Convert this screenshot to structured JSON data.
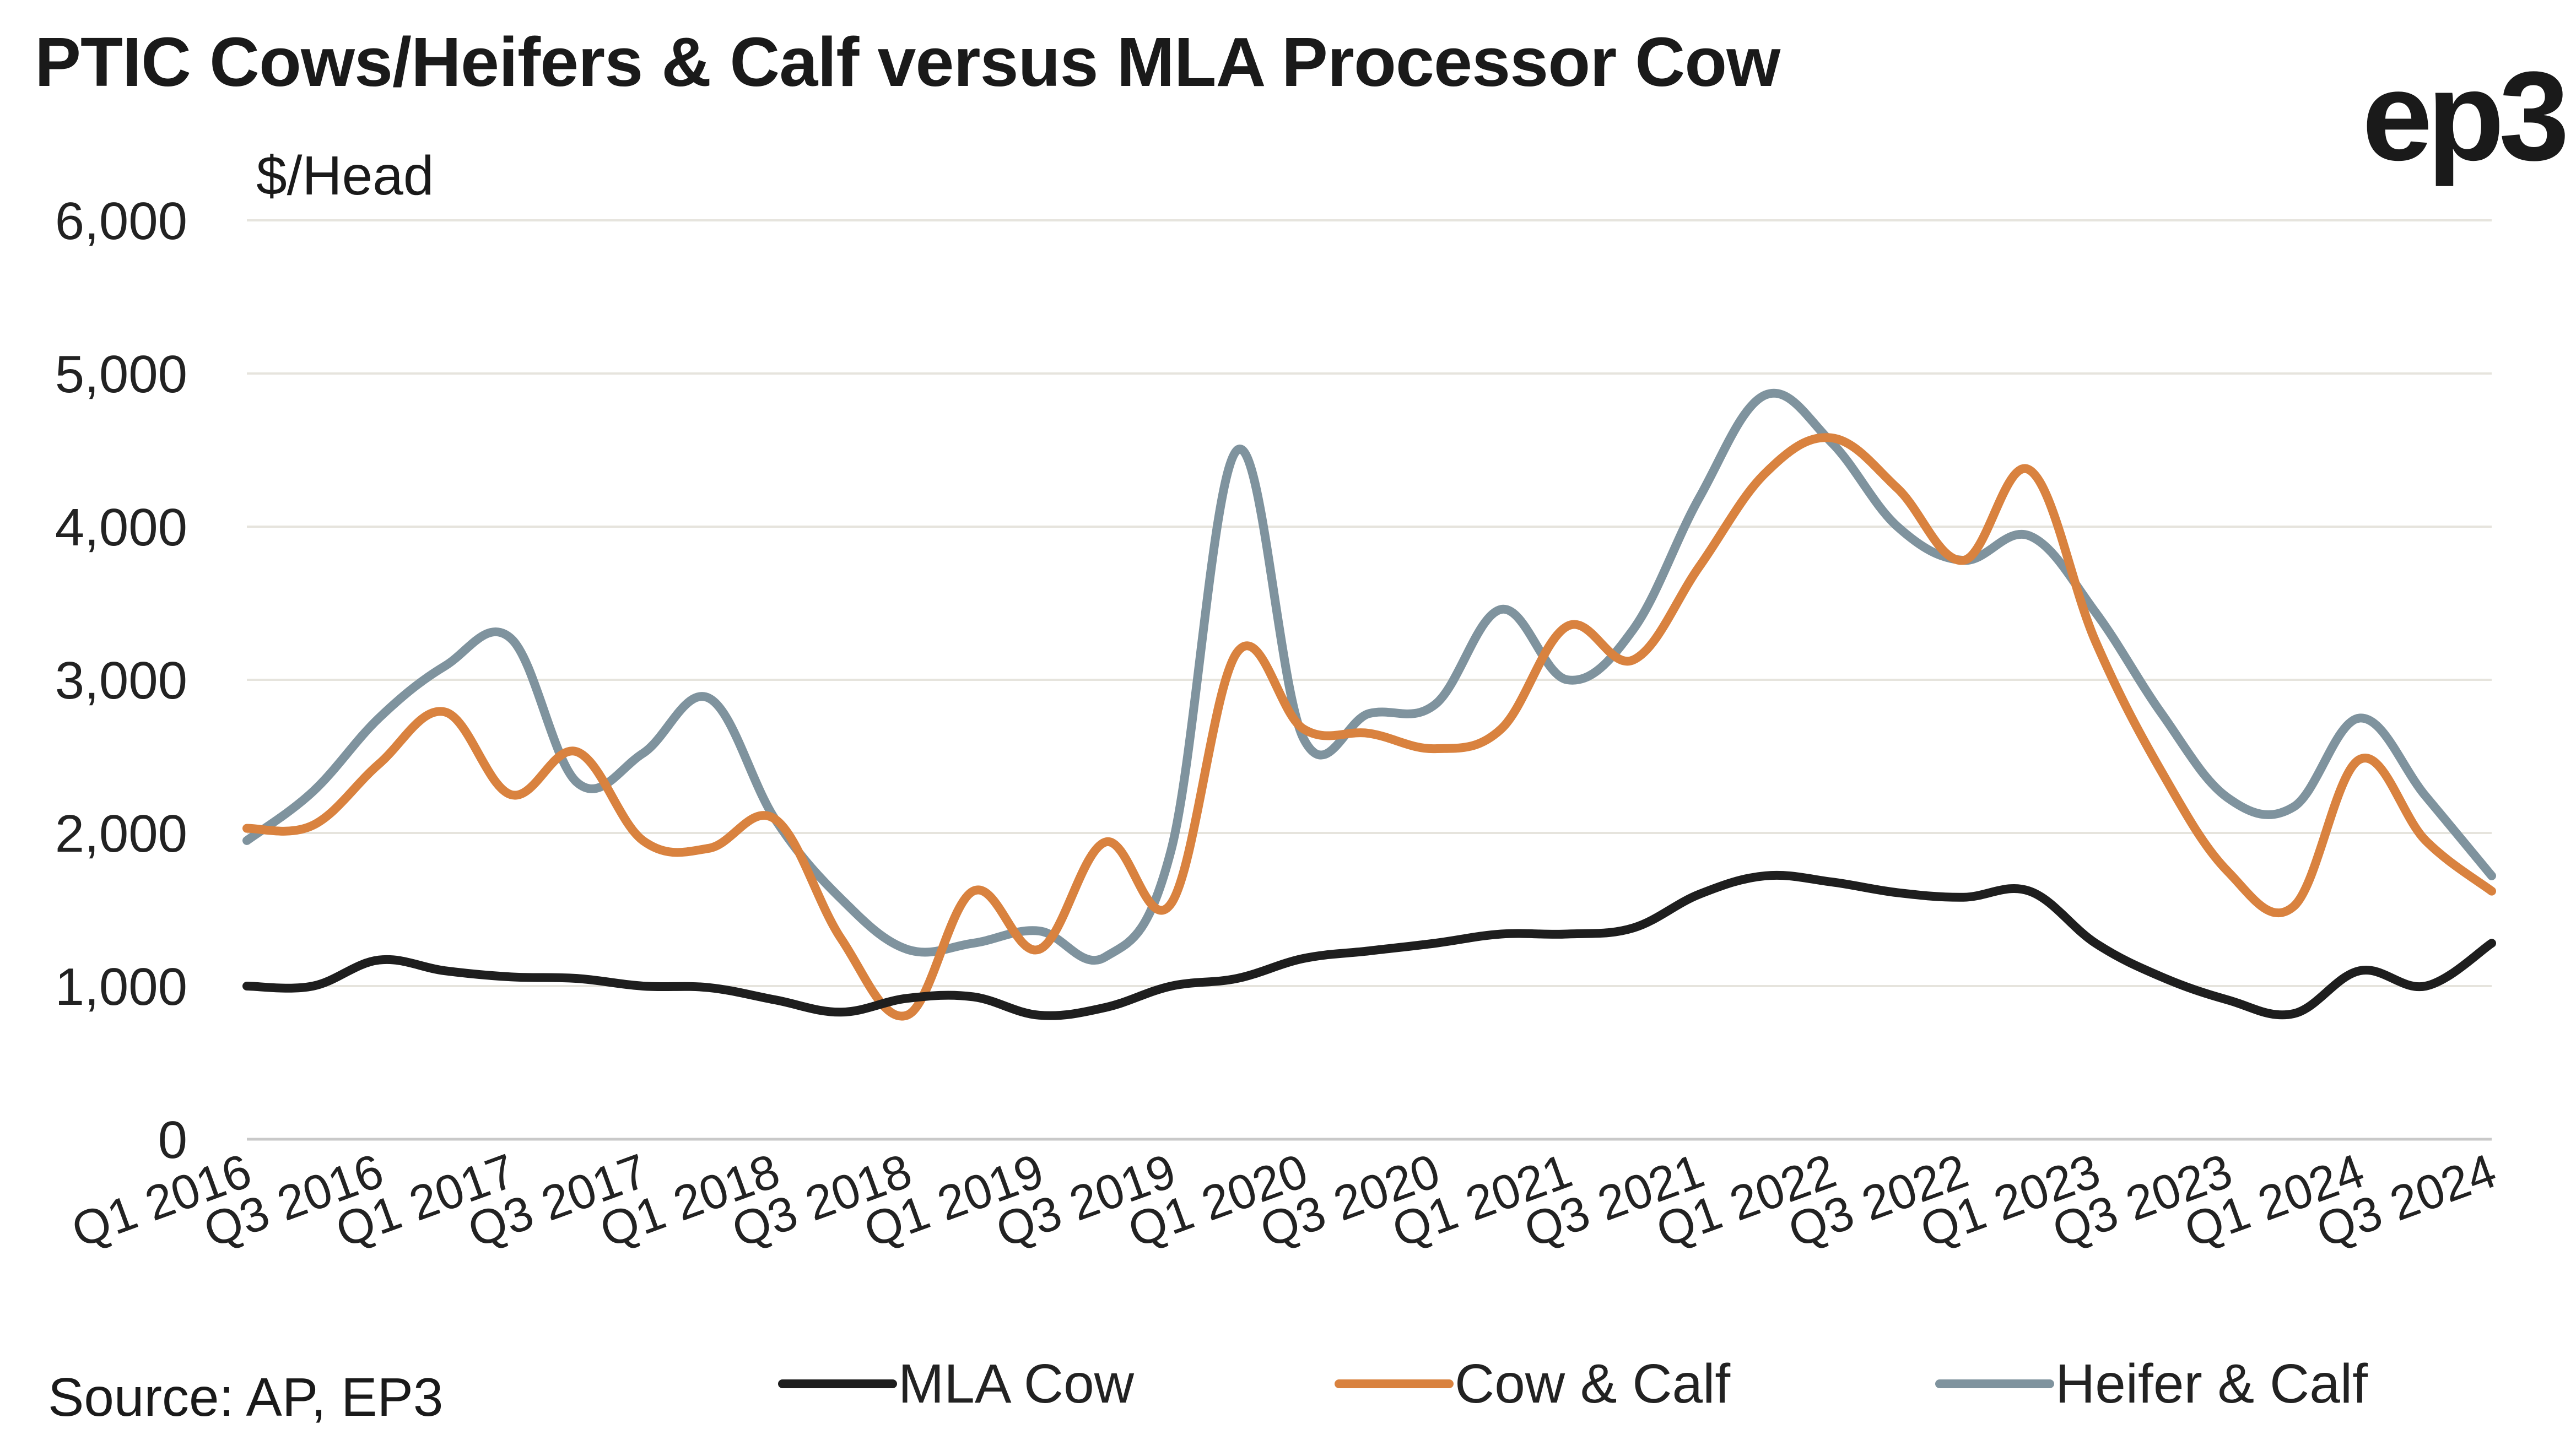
{
  "title": "PTIC Cows/Heifers & Calf versus MLA Processor Cow",
  "logo_text": "ep3",
  "source": "Source: AP, EP3",
  "chart_data": {
    "type": "line",
    "title": "PTIC Cows/Heifers & Calf versus MLA Processor Cow",
    "ylabel": "$/Head",
    "xlabel": "",
    "ylim": [
      0,
      6000
    ],
    "yticks": [
      0,
      1000,
      2000,
      3000,
      4000,
      5000,
      6000
    ],
    "ytick_labels": [
      "0",
      "1,000",
      "2,000",
      "3,000",
      "4,000",
      "5,000",
      "6,000"
    ],
    "grid": "horizontal",
    "legend_position": "bottom",
    "x": [
      "2016-01",
      "2016-04",
      "2016-07",
      "2016-10",
      "2017-01",
      "2017-04",
      "2017-07",
      "2017-10",
      "2018-01",
      "2018-04",
      "2018-07",
      "2018-10",
      "2019-01",
      "2019-04",
      "2019-07",
      "2019-10",
      "2020-01",
      "2020-04",
      "2020-07",
      "2020-10",
      "2021-01",
      "2021-04",
      "2021-07",
      "2021-10",
      "2022-01",
      "2022-04",
      "2022-07",
      "2022-10",
      "2023-01",
      "2023-04",
      "2023-07",
      "2023-10",
      "2024-01",
      "2024-04",
      "2024-07"
    ],
    "xtick_labels": [
      "Q1 2016",
      "Q3 2016",
      "Q1 2017",
      "Q3 2017",
      "Q1 2018",
      "Q3 2018",
      "Q1 2019",
      "Q3 2019",
      "Q1 2020",
      "Q3 2020",
      "Q1 2021",
      "Q3 2021",
      "Q1 2022",
      "Q3 2022",
      "Q1 2023",
      "Q3 2023",
      "Q1 2024",
      "Q3 2024"
    ],
    "xtick_every": 2,
    "series": [
      {
        "name": "MLA Cow",
        "color": "#1e1e1e",
        "values": [
          1000,
          1000,
          1170,
          1100,
          1060,
          1050,
          1000,
          990,
          910,
          830,
          920,
          930,
          810,
          860,
          1000,
          1050,
          1180,
          1230,
          1280,
          1340,
          1340,
          1380,
          1600,
          1720,
          1680,
          1610,
          1580,
          1620,
          1280,
          1060,
          910,
          820,
          1100,
          1000,
          1280
        ]
      },
      {
        "name": "Cow & Calf",
        "color": "#d9823f",
        "values": [
          2030,
          2050,
          2450,
          2790,
          2250,
          2530,
          1950,
          1900,
          2090,
          1310,
          810,
          1620,
          1240,
          1940,
          1540,
          3180,
          2680,
          2650,
          2550,
          2680,
          3350,
          3130,
          3740,
          4350,
          4580,
          4250,
          3780,
          4370,
          3250,
          2400,
          1750,
          1520,
          2480,
          1950,
          1620
        ]
      },
      {
        "name": "Heifer & Calf",
        "color": "#7f939e",
        "values": [
          1950,
          2270,
          2750,
          3090,
          3270,
          2330,
          2520,
          2880,
          2090,
          1570,
          1240,
          1280,
          1360,
          1190,
          1890,
          4500,
          2620,
          2780,
          2840,
          3460,
          3000,
          3330,
          4190,
          4860,
          4550,
          4000,
          3780,
          3940,
          3440,
          2780,
          2230,
          2170,
          2750,
          2240,
          1720
        ]
      }
    ]
  }
}
